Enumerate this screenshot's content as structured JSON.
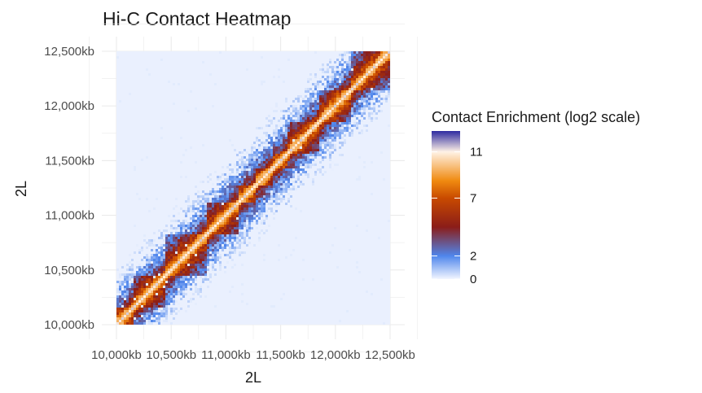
{
  "chart_data": {
    "type": "heatmap",
    "title": "Hi-C Contact Heatmap",
    "xlabel": "2L",
    "ylabel": "2L",
    "x_unit_suffix": "kb",
    "xlim": [
      10000,
      12500
    ],
    "ylim": [
      10000,
      12500
    ],
    "x_ticks": [
      10000,
      10500,
      11000,
      11500,
      12000,
      12500
    ],
    "y_ticks": [
      10000,
      10500,
      11000,
      11500,
      12000,
      12500
    ],
    "x_tick_labels": [
      "10,000kb",
      "10,500kb",
      "11,000kb",
      "11,500kb",
      "12,000kb",
      "12,500kb"
    ],
    "y_tick_labels": [
      "10,000kb",
      "10,500kb",
      "11,000kb",
      "11,500kb",
      "12,000kb",
      "12,500kb"
    ],
    "grid": true,
    "legend": {
      "title": "Contact Enrichment (log2 scale)",
      "placement": "right",
      "ticks": [
        0,
        2,
        7,
        11
      ],
      "tick_labels": [
        "0",
        "2",
        "7",
        "11"
      ],
      "range": [
        0,
        12.8
      ],
      "color_stops": [
        {
          "value": 0,
          "color": "#f2f6ff"
        },
        {
          "value": 2,
          "color": "#4f86ec"
        },
        {
          "value": 4.5,
          "color": "#8b1d18"
        },
        {
          "value": 7,
          "color": "#c84a00"
        },
        {
          "value": 8.5,
          "color": "#f08a10"
        },
        {
          "value": 11,
          "color": "#fff2e6"
        },
        {
          "value": 12.8,
          "color": "#2e2aa0"
        }
      ]
    },
    "domains": [
      {
        "start": 10000,
        "end": 10150
      },
      {
        "start": 10150,
        "end": 10450
      },
      {
        "start": 10450,
        "end": 10830
      },
      {
        "start": 10830,
        "end": 11120
      },
      {
        "start": 11120,
        "end": 11280
      },
      {
        "start": 11280,
        "end": 11420
      },
      {
        "start": 11420,
        "end": 11570
      },
      {
        "start": 11570,
        "end": 11850
      },
      {
        "start": 11850,
        "end": 12150
      },
      {
        "start": 12150,
        "end": 12500
      }
    ]
  }
}
